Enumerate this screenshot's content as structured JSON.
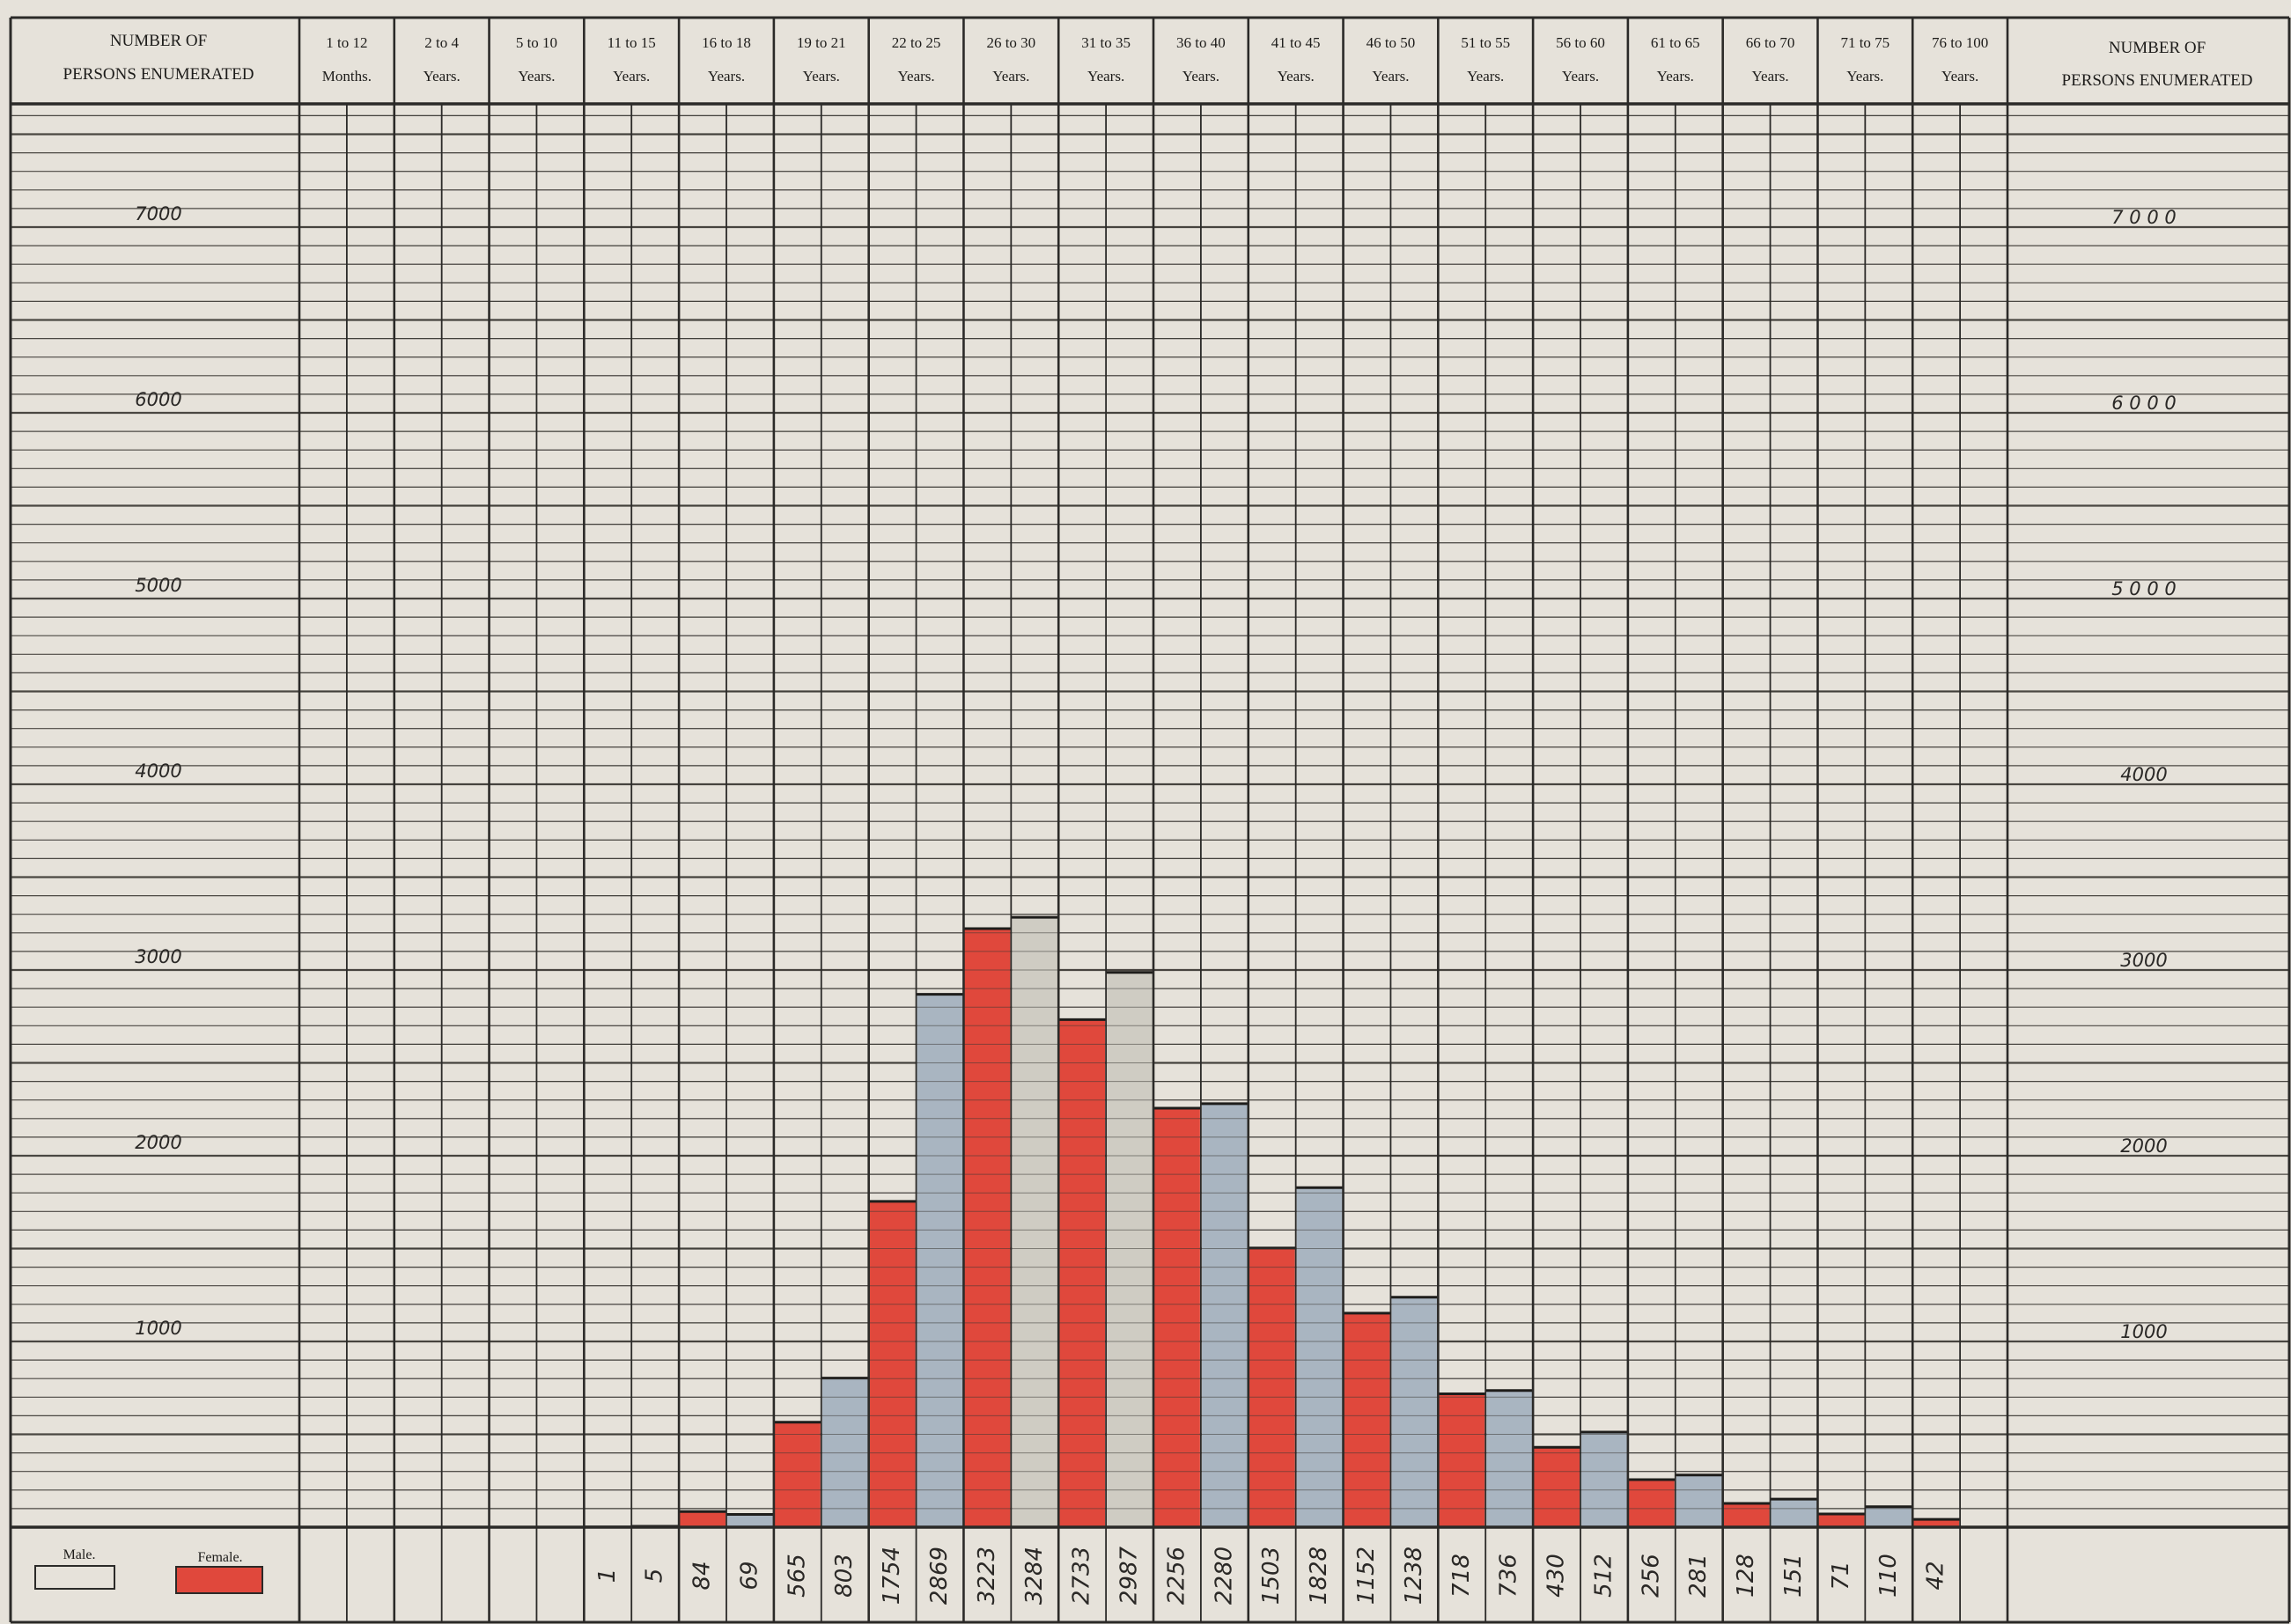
{
  "header": {
    "left_axis_label": [
      "NUMBER OF",
      "PERSONS ENUMERATED"
    ],
    "right_axis_label": [
      "NUMBER OF",
      "PERSONS ENUMERATED"
    ]
  },
  "legend": {
    "male_label": "Male.",
    "female_label": "Female."
  },
  "colors": {
    "paper": "#e6e2da",
    "male": "#a9b5c1",
    "female": "#e0483c",
    "male_light": "#cfccc3",
    "ink": "#2b2a28"
  },
  "chart_data": {
    "type": "bar",
    "categories": [
      [
        "1 to 12",
        "Months."
      ],
      [
        "2 to 4",
        "Years."
      ],
      [
        "5 to 10",
        "Years."
      ],
      [
        "11 to 15",
        "Years."
      ],
      [
        "16 to 18",
        "Years."
      ],
      [
        "19 to 21",
        "Years."
      ],
      [
        "22 to 25",
        "Years."
      ],
      [
        "26 to 30",
        "Years."
      ],
      [
        "31 to 35",
        "Years."
      ],
      [
        "36 to 40",
        "Years."
      ],
      [
        "41 to 45",
        "Years."
      ],
      [
        "46 to 50",
        "Years."
      ],
      [
        "51 to 55",
        "Years."
      ],
      [
        "56 to 60",
        "Years."
      ],
      [
        "61 to 65",
        "Years."
      ],
      [
        "66 to 70",
        "Years."
      ],
      [
        "71 to 75",
        "Years."
      ],
      [
        "76 to 100",
        "Years."
      ]
    ],
    "series": [
      {
        "name": "Female.",
        "values": [
          null,
          null,
          null,
          1,
          84,
          565,
          1754,
          3223,
          2733,
          2256,
          1503,
          1152,
          718,
          430,
          256,
          128,
          71,
          42
        ]
      },
      {
        "name": "Male.",
        "values": [
          null,
          null,
          null,
          5,
          69,
          803,
          2869,
          3284,
          2987,
          2280,
          1828,
          1238,
          736,
          512,
          281,
          151,
          110,
          null
        ]
      }
    ],
    "value_labels": [
      "1",
      "5",
      "84",
      "69",
      "565",
      "803",
      "1754",
      "2869",
      "3223",
      "3284",
      "2733",
      "2987",
      "2256",
      "2280",
      "1503",
      "1828",
      "1152",
      "1238",
      "718",
      "736",
      "430",
      "512",
      "256",
      "281",
      "128",
      "151",
      "71",
      "110",
      "42"
    ],
    "y_ticks": [
      {
        "value": 7000,
        "left": "7000",
        "right": "7 0 0 0"
      },
      {
        "value": 6000,
        "left": "6000",
        "right": "6 0 0 0"
      },
      {
        "value": 5000,
        "left": "5000",
        "right": "5 0 0 0"
      },
      {
        "value": 4000,
        "left": "4000",
        "right": "4000"
      },
      {
        "value": 3000,
        "left": "3000",
        "right": "3000"
      },
      {
        "value": 2000,
        "left": "2000",
        "right": "2000"
      },
      {
        "value": 1000,
        "left": "1000",
        "right": "1000"
      }
    ],
    "ylim": [
      0,
      7000
    ],
    "grid": true
  }
}
